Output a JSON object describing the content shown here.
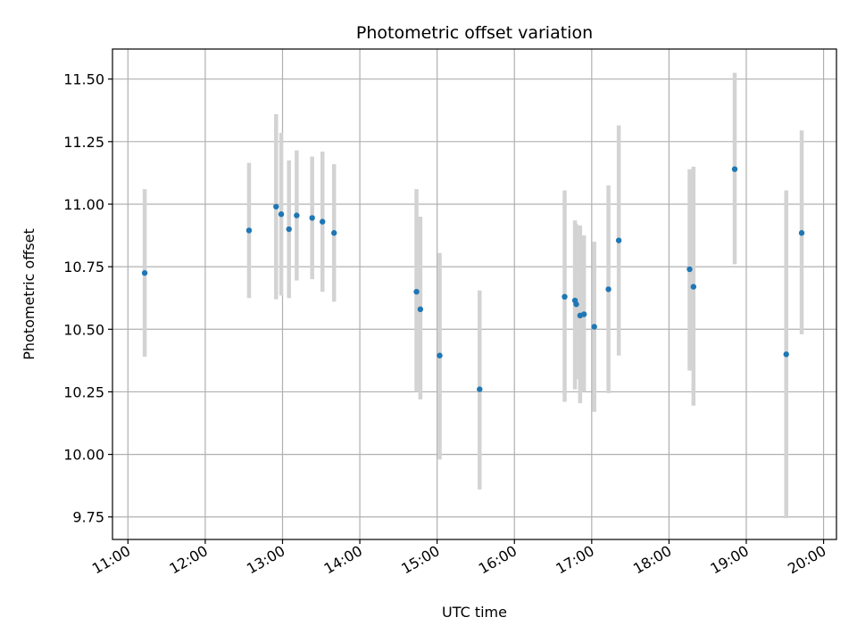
{
  "chart_data": {
    "type": "scatter",
    "title": "Photometric offset variation",
    "xlabel": "UTC time",
    "ylabel": "Photometric offset",
    "xlim": [
      "10:48",
      "20:10"
    ],
    "ylim": [
      9.66,
      11.62
    ],
    "x_ticks": [
      "11:00",
      "12:00",
      "13:00",
      "14:00",
      "15:00",
      "16:00",
      "17:00",
      "18:00",
      "19:00",
      "20:00"
    ],
    "y_ticks": [
      9.75,
      10.0,
      10.25,
      10.5,
      10.75,
      11.0,
      11.25,
      11.5
    ],
    "y_tick_labels": [
      "9.75",
      "10.00",
      "10.25",
      "10.50",
      "10.75",
      "11.00",
      "11.25",
      "11.50"
    ],
    "grid": true,
    "point_color": "#1f77b4",
    "errorbar_color": "#d3d3d3",
    "points": [
      {
        "time": "11:13",
        "y": 10.725,
        "ylow": 10.39,
        "yhigh": 11.06
      },
      {
        "time": "12:34",
        "y": 10.895,
        "ylow": 10.625,
        "yhigh": 11.165
      },
      {
        "time": "12:55",
        "y": 10.99,
        "ylow": 10.62,
        "yhigh": 11.36
      },
      {
        "time": "12:59",
        "y": 10.96,
        "ylow": 10.635,
        "yhigh": 11.285
      },
      {
        "time": "13:05",
        "y": 10.9,
        "ylow": 10.625,
        "yhigh": 11.175
      },
      {
        "time": "13:11",
        "y": 10.955,
        "ylow": 10.695,
        "yhigh": 11.215
      },
      {
        "time": "13:23",
        "y": 10.945,
        "ylow": 10.7,
        "yhigh": 11.19
      },
      {
        "time": "13:31",
        "y": 10.93,
        "ylow": 10.65,
        "yhigh": 11.21
      },
      {
        "time": "13:40",
        "y": 10.885,
        "ylow": 10.61,
        "yhigh": 11.16
      },
      {
        "time": "14:44",
        "y": 10.65,
        "ylow": 10.25,
        "yhigh": 11.06
      },
      {
        "time": "14:47",
        "y": 10.58,
        "ylow": 10.22,
        "yhigh": 10.95
      },
      {
        "time": "15:02",
        "y": 10.395,
        "ylow": 9.98,
        "yhigh": 10.805
      },
      {
        "time": "15:33",
        "y": 10.26,
        "ylow": 9.86,
        "yhigh": 10.655
      },
      {
        "time": "16:39",
        "y": 10.63,
        "ylow": 10.21,
        "yhigh": 11.055
      },
      {
        "time": "16:47",
        "y": 10.615,
        "ylow": 10.26,
        "yhigh": 10.935
      },
      {
        "time": "16:48",
        "y": 10.6,
        "ylow": 10.3,
        "yhigh": 10.92
      },
      {
        "time": "16:51",
        "y": 10.555,
        "ylow": 10.205,
        "yhigh": 10.915
      },
      {
        "time": "16:54",
        "y": 10.56,
        "ylow": 10.25,
        "yhigh": 10.875
      },
      {
        "time": "17:02",
        "y": 10.51,
        "ylow": 10.17,
        "yhigh": 10.85
      },
      {
        "time": "17:13",
        "y": 10.66,
        "ylow": 10.245,
        "yhigh": 11.075
      },
      {
        "time": "17:21",
        "y": 10.855,
        "ylow": 10.395,
        "yhigh": 11.315
      },
      {
        "time": "18:16",
        "y": 10.74,
        "ylow": 10.335,
        "yhigh": 11.14
      },
      {
        "time": "18:19",
        "y": 10.67,
        "ylow": 10.195,
        "yhigh": 11.15
      },
      {
        "time": "18:51",
        "y": 11.14,
        "ylow": 10.76,
        "yhigh": 11.525
      },
      {
        "time": "19:31",
        "y": 10.4,
        "ylow": 9.745,
        "yhigh": 11.055
      },
      {
        "time": "19:43",
        "y": 10.885,
        "ylow": 10.48,
        "yhigh": 11.295
      }
    ]
  }
}
